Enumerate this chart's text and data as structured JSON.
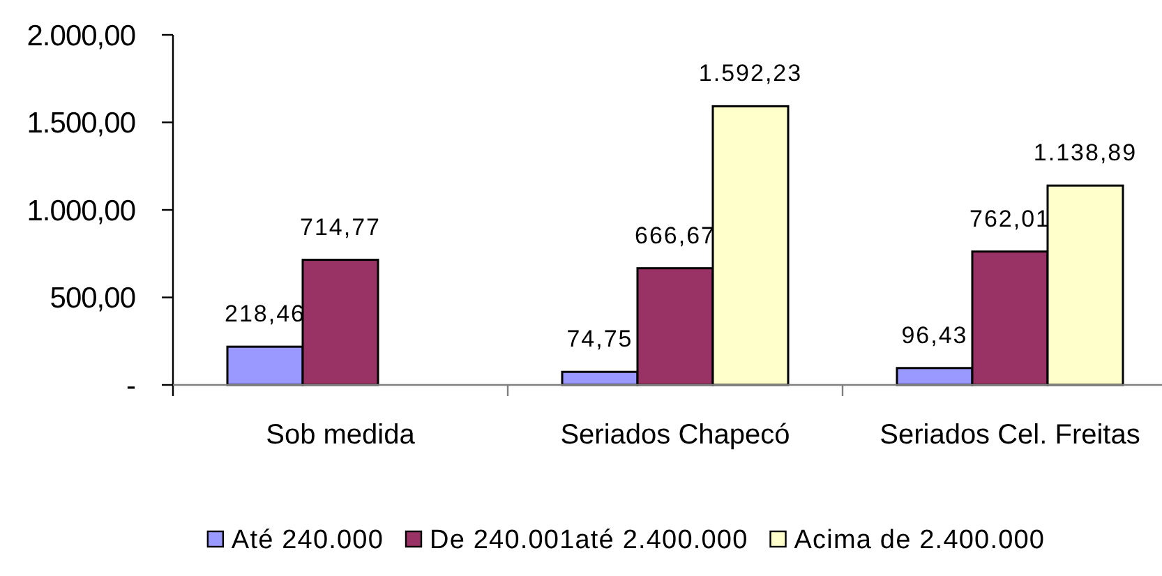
{
  "chart_data": {
    "type": "bar",
    "categories": [
      "Sob medida",
      "Seriados Chapecó",
      "Seriados Cel. Freitas"
    ],
    "series": [
      {
        "name": "Até 240.000",
        "color": "#9999ff",
        "values": [
          218.46,
          74.75,
          96.43
        ],
        "value_labels": [
          "218,46",
          "74,75",
          "96,43"
        ]
      },
      {
        "name": "De 240.001até 2.400.000",
        "color": "#993366",
        "values": [
          714.77,
          666.67,
          762.01
        ],
        "value_labels": [
          "714,77",
          "666,67",
          "762,01"
        ]
      },
      {
        "name": "Acima de 2.400.000",
        "color": "#ffffcc",
        "values": [
          null,
          1592.23,
          1138.89
        ],
        "value_labels": [
          null,
          "1.592,23",
          "1.138,89"
        ]
      }
    ],
    "ylim": [
      0,
      2000
    ],
    "yticks": [
      {
        "value": 0,
        "label": "-"
      },
      {
        "value": 500,
        "label": "500,00"
      },
      {
        "value": 1000,
        "label": "1.000,00"
      },
      {
        "value": 1500,
        "label": "1.500,00"
      },
      {
        "value": 2000,
        "label": "2.000,00"
      }
    ],
    "grid": false,
    "legend": "bottom"
  }
}
